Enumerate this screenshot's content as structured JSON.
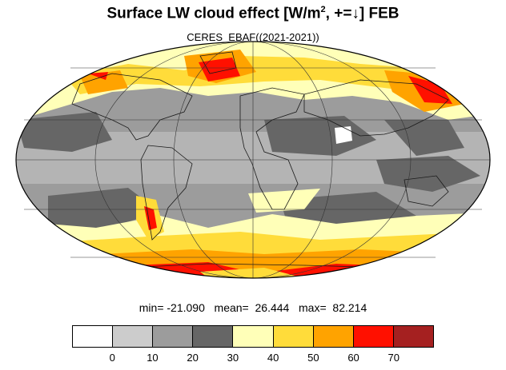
{
  "title_main": "Surface LW cloud effect [W/m",
  "title_sup": "2",
  "title_tail": ", +=↓]  FEB",
  "subtitle": "CERES_EBAF((2021-2021))",
  "stats": "min= -21.090   mean=  26.444   max=  82.214",
  "colorbar": {
    "colors": [
      "#ffffff",
      "#cccccc",
      "#9c9c9c",
      "#666666",
      "#ffffb8",
      "#ffdc3a",
      "#ffa300",
      "#ff1000",
      "#a52020"
    ],
    "ticks": [
      "0",
      "10",
      "20",
      "30",
      "40",
      "50",
      "60",
      "70"
    ]
  },
  "chart_data": {
    "type": "heatmap",
    "title": "Surface LW cloud effect [W/m2, +=↓]  FEB",
    "subtitle": "CERES_EBAF((2021-2021))",
    "projection": "mollweide",
    "min": -21.09,
    "mean": 26.444,
    "max": 82.214,
    "levels": [
      0,
      10,
      20,
      30,
      40,
      50,
      60,
      70
    ]
  }
}
